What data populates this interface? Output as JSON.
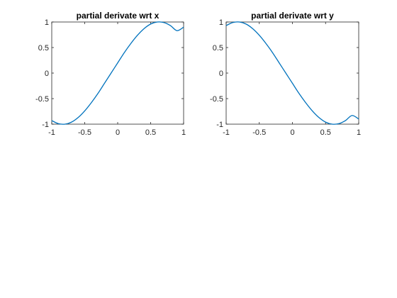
{
  "colors": {
    "line": "#0072BD",
    "axis": "#262626",
    "background": "#ffffff"
  },
  "chart_data": [
    {
      "type": "line",
      "title": "partial derivate wrt x",
      "xlabel": "",
      "ylabel": "",
      "xlim": [
        -1,
        1
      ],
      "ylim": [
        -1,
        1
      ],
      "xticks": [
        -1,
        -0.5,
        0,
        0.5,
        1
      ],
      "xtick_labels": [
        "-1",
        "-0.5",
        "0",
        "0.5",
        "1"
      ],
      "yticks": [
        -1,
        -0.5,
        0,
        0.5,
        1
      ],
      "ytick_labels": [
        "-1",
        "-0.5",
        "0",
        "0.5",
        "1"
      ],
      "grid": false,
      "series": [
        {
          "x": [
            -1,
            -0.9,
            -0.8,
            -0.7,
            -0.6,
            -0.5,
            -0.4,
            -0.3,
            -0.2,
            -0.1,
            0,
            0.1,
            0.2,
            0.3,
            0.4,
            0.5,
            0.6,
            0.7,
            0.8,
            0.9,
            1
          ],
          "y": [
            -0.93,
            -0.99,
            -1.0,
            -0.96,
            -0.87,
            -0.74,
            -0.58,
            -0.4,
            -0.2,
            0.0,
            0.2,
            0.4,
            0.58,
            0.74,
            0.87,
            0.96,
            1.0,
            0.99,
            0.93,
            0.83,
            0.9
          ]
        }
      ]
    },
    {
      "type": "line",
      "title": "partial derivate wrt y",
      "xlabel": "",
      "ylabel": "",
      "xlim": [
        -1,
        1
      ],
      "ylim": [
        -1,
        1
      ],
      "xticks": [
        -1,
        -0.5,
        0,
        0.5,
        1
      ],
      "xtick_labels": [
        "-1",
        "-0.5",
        "0",
        "0.5",
        "1"
      ],
      "yticks": [
        -1,
        -0.5,
        0,
        0.5,
        1
      ],
      "ytick_labels": [
        "-1",
        "-0.5",
        "0",
        "0.5",
        "1"
      ],
      "grid": false,
      "series": [
        {
          "x": [
            -1,
            -0.9,
            -0.8,
            -0.7,
            -0.6,
            -0.5,
            -0.4,
            -0.3,
            -0.2,
            -0.1,
            0,
            0.1,
            0.2,
            0.3,
            0.4,
            0.5,
            0.6,
            0.7,
            0.8,
            0.9,
            1
          ],
          "y": [
            0.93,
            0.99,
            1.0,
            0.96,
            0.87,
            0.74,
            0.58,
            0.4,
            0.2,
            0.0,
            -0.2,
            -0.4,
            -0.58,
            -0.74,
            -0.87,
            -0.96,
            -1.0,
            -0.99,
            -0.93,
            -0.83,
            -0.9
          ]
        }
      ]
    }
  ]
}
